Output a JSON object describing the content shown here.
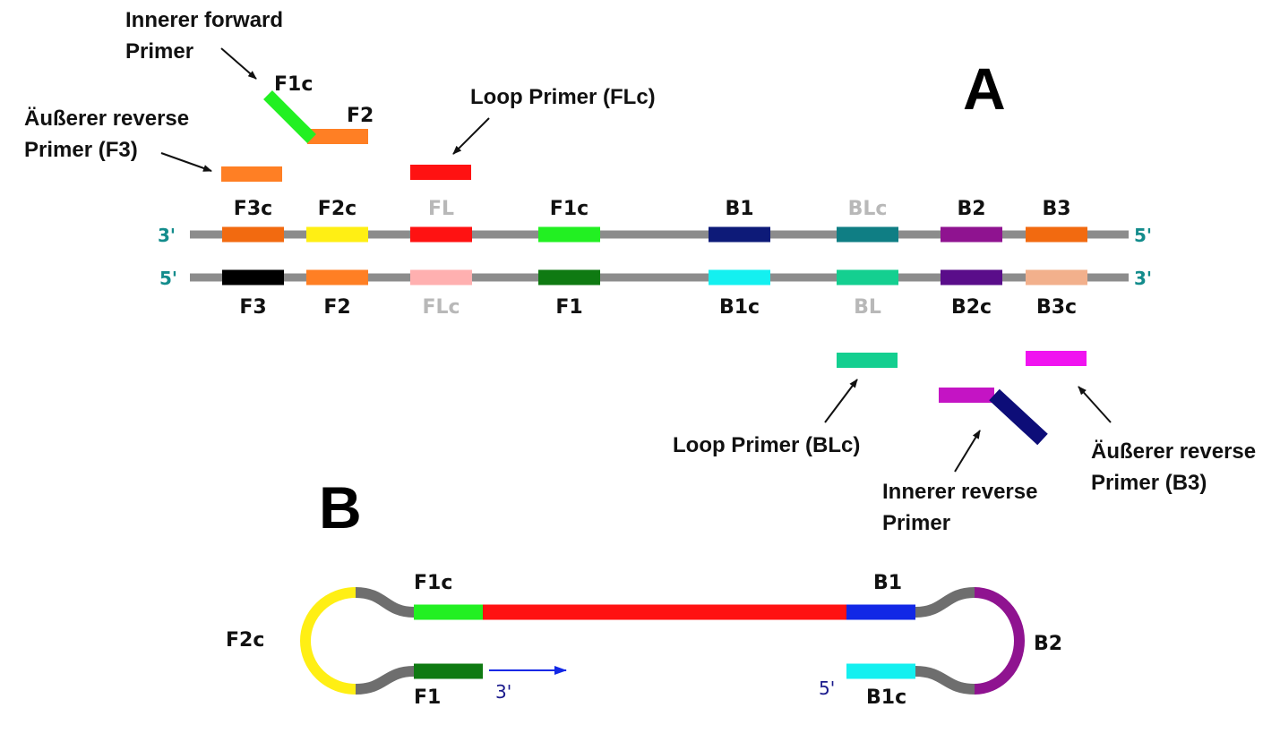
{
  "panels": {
    "a": "A",
    "b": "B"
  },
  "strand_ends": {
    "top_left": "3'",
    "top_right": "5'",
    "bottom_left": "5'",
    "bottom_right": "3'"
  },
  "top_strand": [
    {
      "label": "F3c",
      "color": "#f26a10",
      "gray": false
    },
    {
      "label": "F2c",
      "color": "#ffef14",
      "gray": false
    },
    {
      "label": "FL",
      "color": "#ff1212",
      "gray": true
    },
    {
      "label": "F1c",
      "color": "#22f022",
      "gray": false
    },
    {
      "label": "B1",
      "color": "#0d1a78",
      "gray": false
    },
    {
      "label": "BLc",
      "color": "#0f7e84",
      "gray": true
    },
    {
      "label": "B2",
      "color": "#8f1390",
      "gray": false
    },
    {
      "label": "B3",
      "color": "#f26a10",
      "gray": false
    }
  ],
  "bottom_strand": [
    {
      "label": "F3",
      "color": "#000000",
      "gray": false
    },
    {
      "label": "F2",
      "color": "#ff7f24",
      "gray": false
    },
    {
      "label": "FLc",
      "color": "#ffb0b0",
      "gray": true
    },
    {
      "label": "F1",
      "color": "#0f7a12",
      "gray": false
    },
    {
      "label": "B1c",
      "color": "#14f0f0",
      "gray": false
    },
    {
      "label": "BL",
      "color": "#14cf90",
      "gray": true
    },
    {
      "label": "B2c",
      "color": "#5a0d8a",
      "gray": false
    },
    {
      "label": "B3c",
      "color": "#f2b08c",
      "gray": false
    }
  ],
  "primers": {
    "fip": {
      "seg1": "F1c",
      "seg2": "F2",
      "callout_line1": "Innerer forward",
      "callout_line2": "Primer",
      "color1": "#22f022",
      "color2": "#ff7f24"
    },
    "f3": {
      "callout_line1": "Äußerer reverse",
      "callout_line2": "Primer (F3)",
      "color": "#ff7f24"
    },
    "loop_f": {
      "callout": "Loop Primer (FLc)",
      "color": "#ff1212"
    },
    "loop_b": {
      "callout": "Loop Primer (BLc)",
      "color": "#14cf90"
    },
    "bip": {
      "callout_line1": "Innerer reverse",
      "callout_line2": "Primer",
      "color1": "#c414c4",
      "color2": "#0d0d78"
    },
    "b3": {
      "callout_line1": "Äußerer reverse",
      "callout_line2": "Primer (B3)",
      "color": "#f014f0"
    }
  },
  "dumbbell": {
    "labels": {
      "f1c": "F1c",
      "b1": "B1",
      "f2c": "F2c",
      "b2": "B2",
      "f1": "F1",
      "b1c": "B1c",
      "three_prime": "3'",
      "five_prime": "5'"
    },
    "colors": {
      "f1c": "#22f022",
      "middle": "#ff1212",
      "b1": "#1228e6",
      "f1": "#0f7a12",
      "b1c": "#14f0f0",
      "f2c": "#ffef14",
      "b2": "#8f1390",
      "gray": "#6e6e6e",
      "arrow": "#1228e6"
    }
  },
  "colors": {
    "strand": "#8c8c8c"
  }
}
